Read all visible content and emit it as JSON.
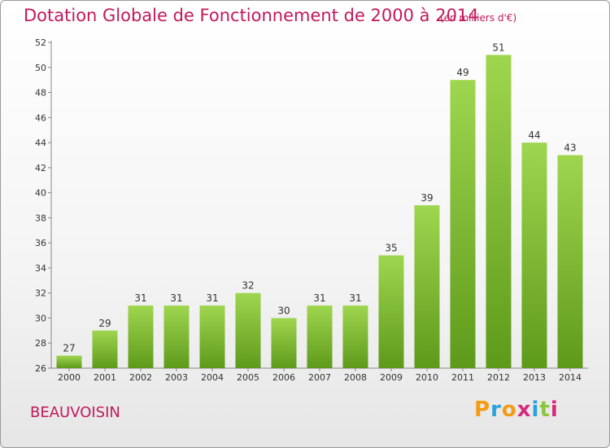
{
  "title": "Dotation Globale de Fonctionnement de 2000 à 2014",
  "subtitle": "(en milliers d'€)",
  "commune": "BEAUVOISIN",
  "logo": {
    "text": "Proxiti",
    "letters": [
      "P",
      "r",
      "o",
      "x",
      "i",
      "t",
      "i"
    ],
    "colors": [
      "#f39c12",
      "#27a3dd",
      "#f39c12",
      "#d62a7e",
      "#27a3dd",
      "#8cc63f",
      "#d62a7e"
    ]
  },
  "colors": {
    "bar_top": "#9fd64f",
    "bar_bottom": "#5e9a1a",
    "text_accent": "#c2185b"
  },
  "chart_data": {
    "type": "bar",
    "categories": [
      "2000",
      "2001",
      "2002",
      "2003",
      "2004",
      "2005",
      "2006",
      "2007",
      "2008",
      "2009",
      "2010",
      "2011",
      "2012",
      "2013",
      "2014"
    ],
    "values": [
      27,
      29,
      31,
      31,
      31,
      32,
      30,
      31,
      31,
      35,
      39,
      49,
      51,
      44,
      43
    ],
    "ylim": [
      26,
      52
    ],
    "yticks": [
      26,
      28,
      30,
      32,
      34,
      36,
      38,
      40,
      42,
      44,
      46,
      48,
      50,
      52
    ],
    "grid": false,
    "data_labels": true
  }
}
